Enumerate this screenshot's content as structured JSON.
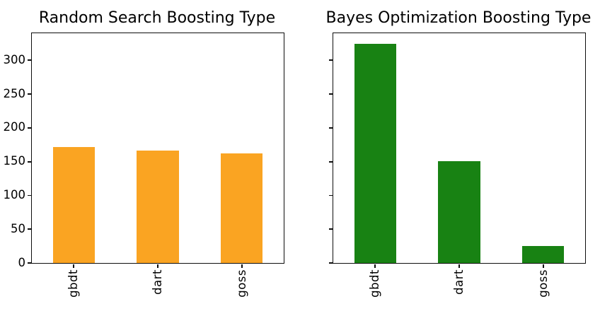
{
  "figure": {
    "background": "#ffffff",
    "text_color": "#000000",
    "axis_color": "#0e0e0e"
  },
  "chart_data": [
    {
      "type": "bar",
      "title": "Random Search Boosting Type",
      "categories": [
        "gbdt",
        "dart",
        "goss"
      ],
      "values": [
        172,
        166,
        162
      ],
      "bar_color": "#faa422",
      "xlabel": "",
      "ylabel": "",
      "ylim": [
        0,
        340
      ],
      "yticks": [
        0,
        50,
        100,
        150,
        200,
        250,
        300
      ],
      "show_ytick_labels": true,
      "xtick_rotation": 90,
      "grid": false,
      "legend_position": "none"
    },
    {
      "type": "bar",
      "title": "Bayes Optimization Boosting Type",
      "categories": [
        "gbdt",
        "dart",
        "goss"
      ],
      "values": [
        324,
        151,
        25
      ],
      "bar_color": "#188213",
      "xlabel": "",
      "ylabel": "",
      "ylim": [
        0,
        340
      ],
      "yticks": [
        0,
        50,
        100,
        150,
        200,
        250,
        300
      ],
      "show_ytick_labels": false,
      "xtick_rotation": 90,
      "grid": false,
      "legend_position": "none"
    }
  ]
}
